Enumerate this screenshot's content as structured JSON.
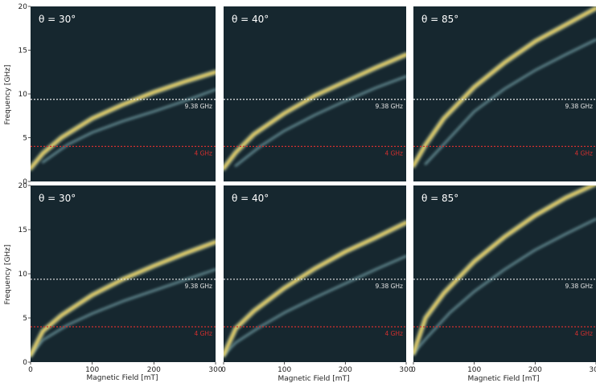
{
  "chart_data": {
    "type": "heatmap",
    "xlabel": "Magnetic Field [mT]",
    "ylabel": "Frequency [GHz]",
    "xlim": [
      0,
      300
    ],
    "ylim": [
      0,
      20
    ],
    "xticks": [
      "0",
      "100",
      "200",
      "300"
    ],
    "yticks": [
      "0",
      "5",
      "10",
      "15",
      "20"
    ],
    "colors": {
      "background": "#16272f",
      "mode_high": "#ffe066",
      "mode_low": "#6f9aa0",
      "white_line": "#e6e6e6",
      "red_line": "#d22f2f"
    },
    "reference_lines": [
      {
        "label": "9.38 GHz",
        "value": 9.38,
        "color": "#e6e6e6"
      },
      {
        "label": "4 GHz",
        "value": 4,
        "color": "#d22f2f"
      }
    ],
    "panels": [
      {
        "row": 0,
        "col": 0,
        "title": "θ = 30°",
        "modes": [
          {
            "x": [
              0,
              20,
              50,
              100,
              150,
              200,
              250,
              300
            ],
            "y": [
              1.5,
              3.2,
              5.0,
              7.2,
              8.8,
              10.2,
              11.4,
              12.5
            ]
          },
          {
            "x": [
              20,
              60,
              100,
              150,
              200,
              250,
              300
            ],
            "y": [
              2.2,
              4.2,
              5.6,
              6.9,
              8.0,
              9.2,
              10.5
            ]
          }
        ]
      },
      {
        "row": 0,
        "col": 1,
        "title": "θ = 40°",
        "modes": [
          {
            "x": [
              0,
              20,
              50,
              100,
              150,
              200,
              250,
              300
            ],
            "y": [
              1.5,
              3.3,
              5.4,
              7.8,
              9.8,
              11.4,
              13.0,
              14.5
            ]
          },
          {
            "x": [
              20,
              60,
              100,
              150,
              200,
              250,
              300
            ],
            "y": [
              1.8,
              4.0,
              5.8,
              7.6,
              9.2,
              10.7,
              12.0
            ]
          }
        ]
      },
      {
        "row": 0,
        "col": 2,
        "title": "θ = 85°",
        "modes": [
          {
            "x": [
              0,
              20,
              50,
              100,
              150,
              200,
              250,
              300
            ],
            "y": [
              1.8,
              4.2,
              7.2,
              10.8,
              13.6,
              16.0,
              17.9,
              19.8
            ]
          },
          {
            "x": [
              20,
              60,
              100,
              150,
              200,
              250,
              300
            ],
            "y": [
              2.0,
              5.0,
              8.0,
              10.6,
              12.7,
              14.5,
              16.2
            ]
          }
        ]
      },
      {
        "row": 1,
        "col": 0,
        "title": "θ = 30°",
        "modes": [
          {
            "x": [
              0,
              20,
              50,
              100,
              150,
              200,
              250,
              300
            ],
            "y": [
              0.8,
              3.5,
              5.3,
              7.6,
              9.4,
              10.9,
              12.3,
              13.6
            ]
          },
          {
            "x": [
              0,
              20,
              60,
              100,
              150,
              200,
              250,
              300
            ],
            "y": [
              0.8,
              2.5,
              4.2,
              5.5,
              6.9,
              8.1,
              9.3,
              10.5
            ]
          }
        ]
      },
      {
        "row": 1,
        "col": 1,
        "title": "θ = 40°",
        "modes": [
          {
            "x": [
              0,
              20,
              50,
              100,
              150,
              200,
              250,
              300
            ],
            "y": [
              0.8,
              3.8,
              5.8,
              8.4,
              10.6,
              12.5,
              14.1,
              15.8
            ]
          },
          {
            "x": [
              0,
              20,
              60,
              100,
              150,
              200,
              250,
              300
            ],
            "y": [
              0.8,
              2.2,
              4.0,
              5.6,
              7.3,
              8.9,
              10.5,
              12.0
            ]
          }
        ]
      },
      {
        "row": 1,
        "col": 2,
        "title": "θ = 85°",
        "modes": [
          {
            "x": [
              0,
              20,
              50,
              100,
              150,
              200,
              250,
              300
            ],
            "y": [
              1.0,
              5.0,
              7.8,
              11.4,
              14.2,
              16.6,
              18.6,
              20.2
            ]
          },
          {
            "x": [
              0,
              20,
              60,
              100,
              150,
              200,
              250,
              300
            ],
            "y": [
              1.0,
              2.6,
              5.6,
              8.0,
              10.5,
              12.7,
              14.5,
              16.2
            ]
          }
        ]
      }
    ]
  }
}
